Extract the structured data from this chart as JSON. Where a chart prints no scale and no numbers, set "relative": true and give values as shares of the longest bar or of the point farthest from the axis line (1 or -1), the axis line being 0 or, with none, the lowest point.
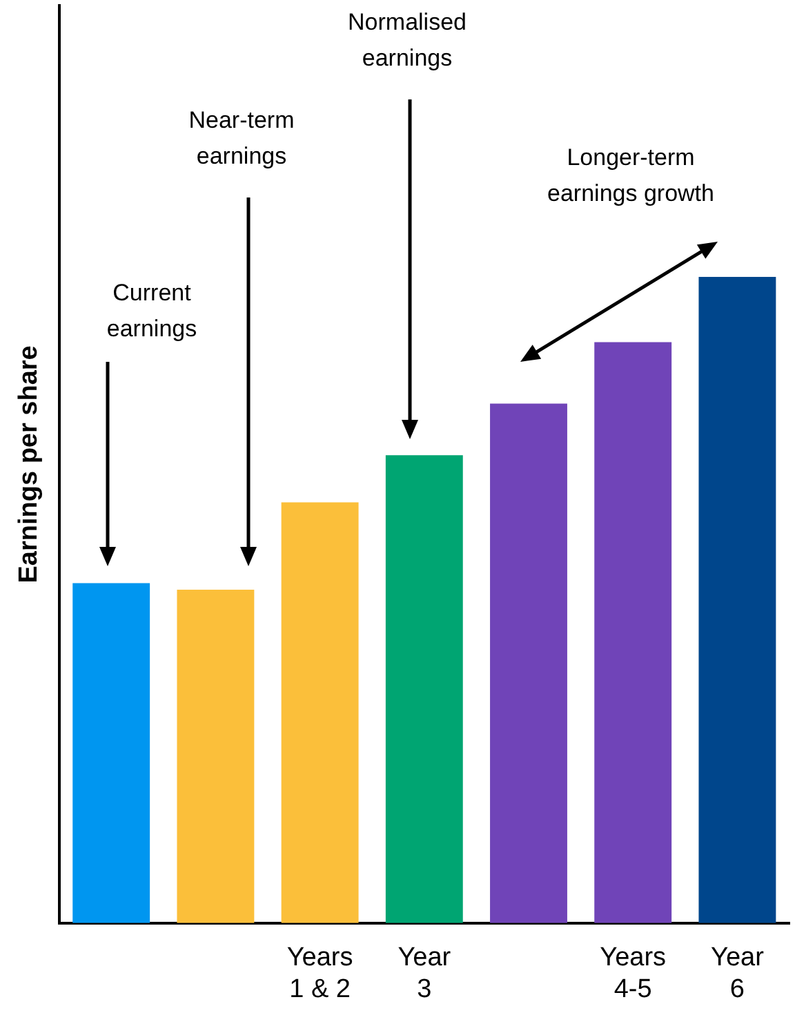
{
  "chart_data": {
    "type": "bar",
    "relative": true,
    "ylabel": "Earnings per share",
    "categories": [
      null,
      null,
      "Years\n1 & 2",
      "Year\n3",
      null,
      "Years\n4-5",
      "Year\n6"
    ],
    "values": [
      0.526,
      0.516,
      0.651,
      0.724,
      0.804,
      0.899,
      1
    ],
    "colors": [
      "#0096f0",
      "#fbbf3a",
      "#fbbf3a",
      "#00a572",
      "#7044b8",
      "#7044b8",
      "#00468c"
    ],
    "annotations": [
      "Current\nearnings",
      "Near-term\nearnings",
      "Normalised\nearnings",
      "Longer-term\nearnings growth"
    ],
    "grid": false,
    "legend": false
  }
}
